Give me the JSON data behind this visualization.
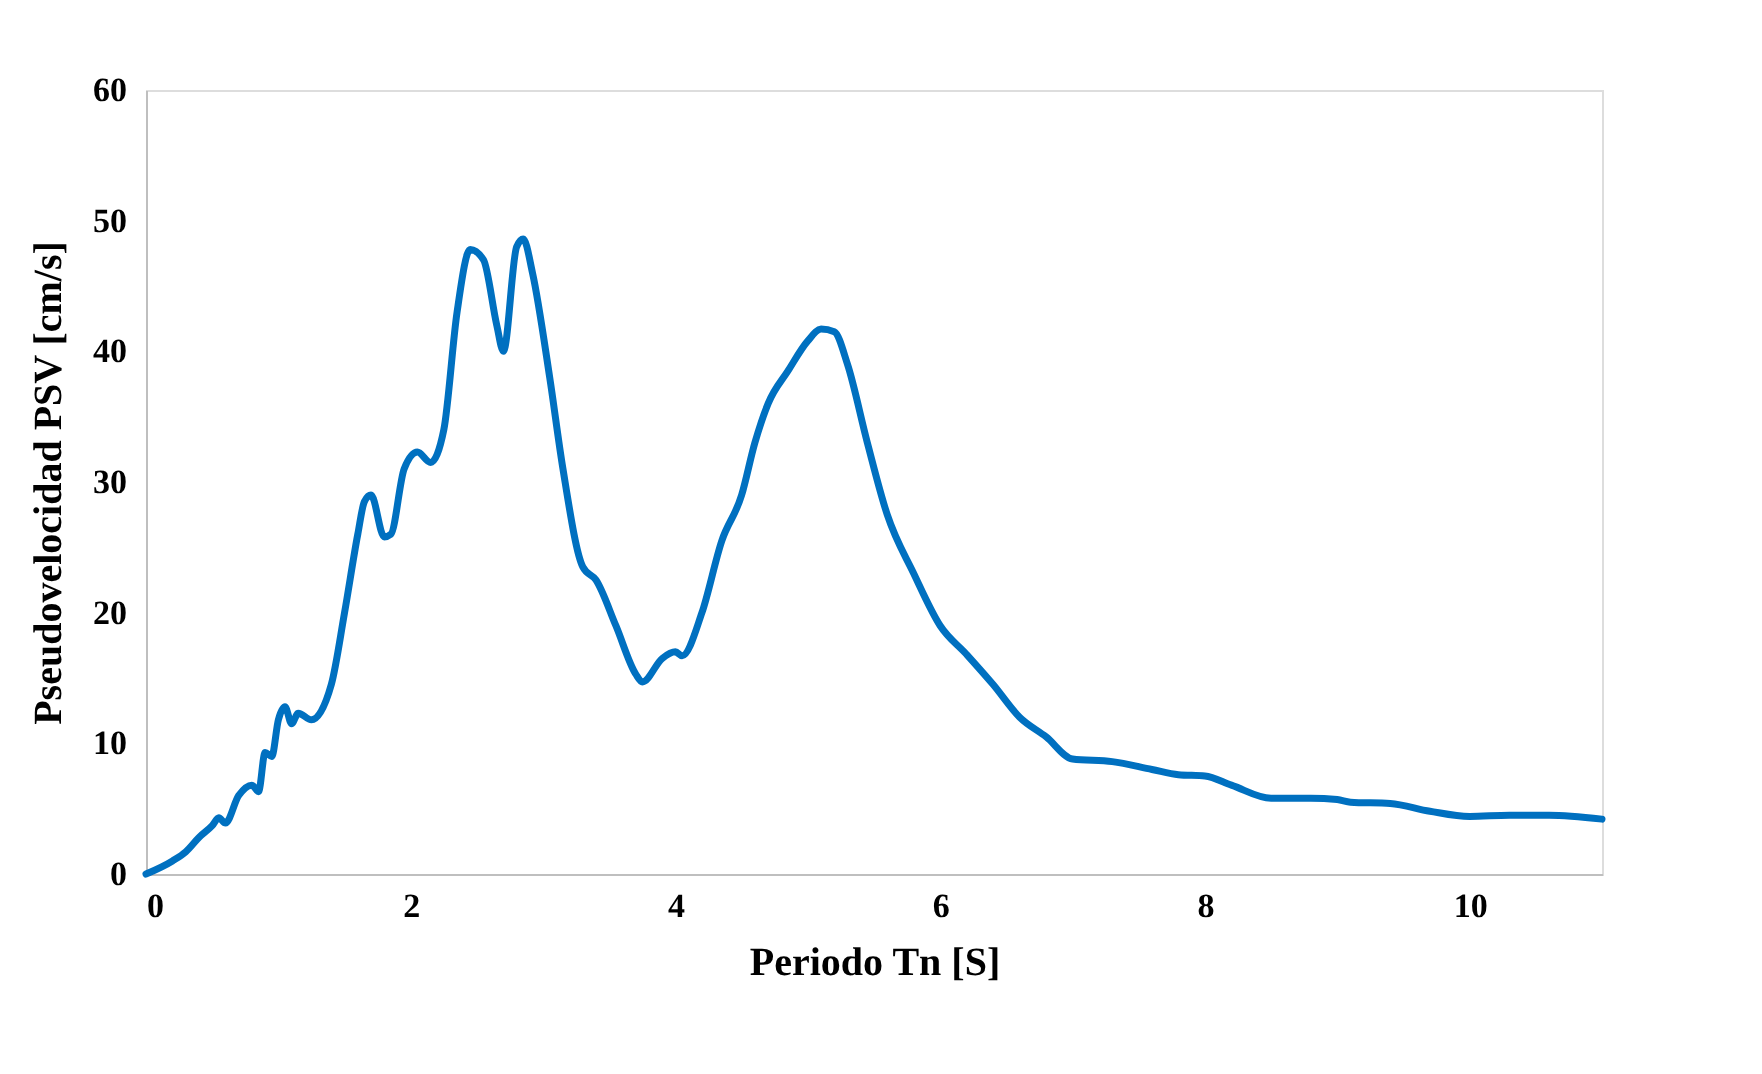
{
  "chart_data": {
    "type": "line",
    "xlabel": "Periodo Tn [S]",
    "ylabel": "Pseudovelocidad PSV [cm/s]",
    "xlim": [
      0,
      11
    ],
    "xticks": [
      0,
      2,
      4,
      6,
      8,
      10
    ],
    "ylim": [
      0,
      60
    ],
    "yticks": [
      0,
      10,
      20,
      30,
      40,
      50,
      60
    ],
    "grid": false,
    "marker": "none",
    "line_style": "solid",
    "series": [
      {
        "color": "#0070c0",
        "x": [
          0,
          0.2,
          0.3,
          0.4,
          0.5,
          0.55,
          0.6,
          0.7,
          0.8,
          0.85,
          0.9,
          0.95,
          1.0,
          1.05,
          1.1,
          1.15,
          1.25,
          1.4,
          1.5,
          1.6,
          1.65,
          1.7,
          1.8,
          1.85,
          1.95,
          2.05,
          2.15,
          2.25,
          2.35,
          2.45,
          2.55,
          2.65,
          2.7,
          2.8,
          2.85,
          2.92,
          3.05,
          3.15,
          3.3,
          3.4,
          3.55,
          3.7,
          3.75,
          3.9,
          4.0,
          4.05,
          4.2,
          4.35,
          4.5,
          4.6,
          4.7,
          4.85,
          5.0,
          5.1,
          5.2,
          5.3,
          5.45,
          5.6,
          5.8,
          6.0,
          6.2,
          6.4,
          6.6,
          6.8,
          7.0,
          7.3,
          7.6,
          7.8,
          8.0,
          8.2,
          8.5,
          8.8,
          9.0,
          9.1,
          9.4,
          9.7,
          10.0,
          10.3,
          10.6,
          11.0
        ],
        "values": [
          0,
          1,
          1.7,
          2.8,
          3.7,
          4.3,
          3.9,
          6,
          6.8,
          6.3,
          9.3,
          9,
          11.8,
          12.8,
          11.5,
          12.3,
          11.8,
          14.5,
          20,
          26,
          28.5,
          29,
          25.8,
          26,
          31,
          32.3,
          31.5,
          34,
          43,
          47.8,
          47,
          42,
          40,
          48,
          48.6,
          46,
          38,
          31,
          23.5,
          22.5,
          19,
          15.3,
          14.7,
          16.5,
          17,
          16.7,
          20,
          25.5,
          29,
          33,
          36,
          38.5,
          40.8,
          41.7,
          41.5,
          39,
          33,
          27.5,
          23,
          19,
          16.8,
          14.5,
          12,
          10.5,
          8.8,
          8.6,
          8,
          7.6,
          7.5,
          6.8,
          5.8,
          5.8,
          5.7,
          5.5,
          5.4,
          4.8,
          4.4,
          4.5,
          4.5,
          4.2
        ]
      }
    ]
  }
}
